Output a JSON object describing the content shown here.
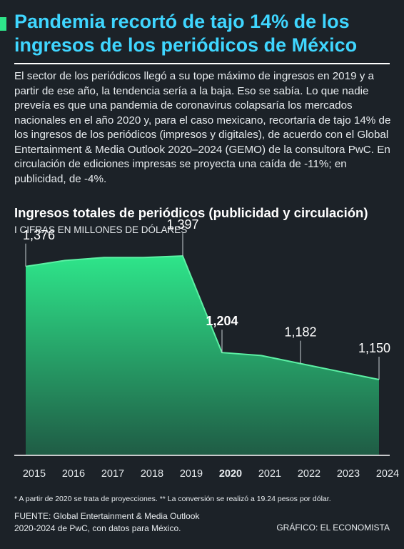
{
  "header": {
    "accent_color": "#2ee58a",
    "title": "Pandemia recortó de tajo 14% de los ingresos de los periódicos de México",
    "title_color": "#3fd6ff"
  },
  "intro": "El sector de los periódicos llegó a su tope máximo de ingresos en 2019 y a partir de ese año, la tendencia sería a la baja. Eso se sabía. Lo que nadie preveía es que una pandemia de coronavirus colapsaría los mercados nacionales en el año 2020 y, para el caso mexicano, recortaría de tajo 14% de los ingresos de los periódicos (impresos y digitales), de acuerdo con el Global Entertainment & Media Outlook 2020–2024 (GEMO) de la consultora PwC. En circulación de ediciones impresas se proyecta una caída de -11%; en publicidad, de -4%.",
  "chart_data": {
    "type": "area",
    "title": "Ingresos totales de periódicos (publicidad y circulación)",
    "subtitle": "I CIFRAS EN MILLONES DE DÓLARES",
    "x": [
      "2015",
      "2016",
      "2017",
      "2018",
      "2019",
      "2020",
      "2021",
      "2022",
      "2023",
      "2024"
    ],
    "values": [
      1376,
      1388,
      1394,
      1394,
      1397,
      1204,
      1198,
      1182,
      1166,
      1150
    ],
    "labels": [
      {
        "year": "2015",
        "text": "1,376",
        "bold": false
      },
      {
        "year": "2019",
        "text": "1,397",
        "bold": false
      },
      {
        "year": "2020",
        "text": "1,204",
        "bold": true
      },
      {
        "year": "2022",
        "text": "1,182",
        "bold": false
      },
      {
        "year": "2024",
        "text": "1,150",
        "bold": false
      }
    ],
    "highlight_year": "2020",
    "ylim": [
      1000,
      1480
    ],
    "fill_top_color": "#2ee58a",
    "fill_bottom_color": "#1f5c45",
    "grid": false
  },
  "footnote": "* A partir de 2020 se trata de proyecciones.  ** La conversión se realizó a 19.24 pesos por dólar.",
  "source_line1": "FUENTE: Global Entertainment & Media Outlook",
  "source_line2": "2020-2024 de PwC, con datos para México.",
  "credit": "GRÁFICO: EL ECONOMISTA"
}
